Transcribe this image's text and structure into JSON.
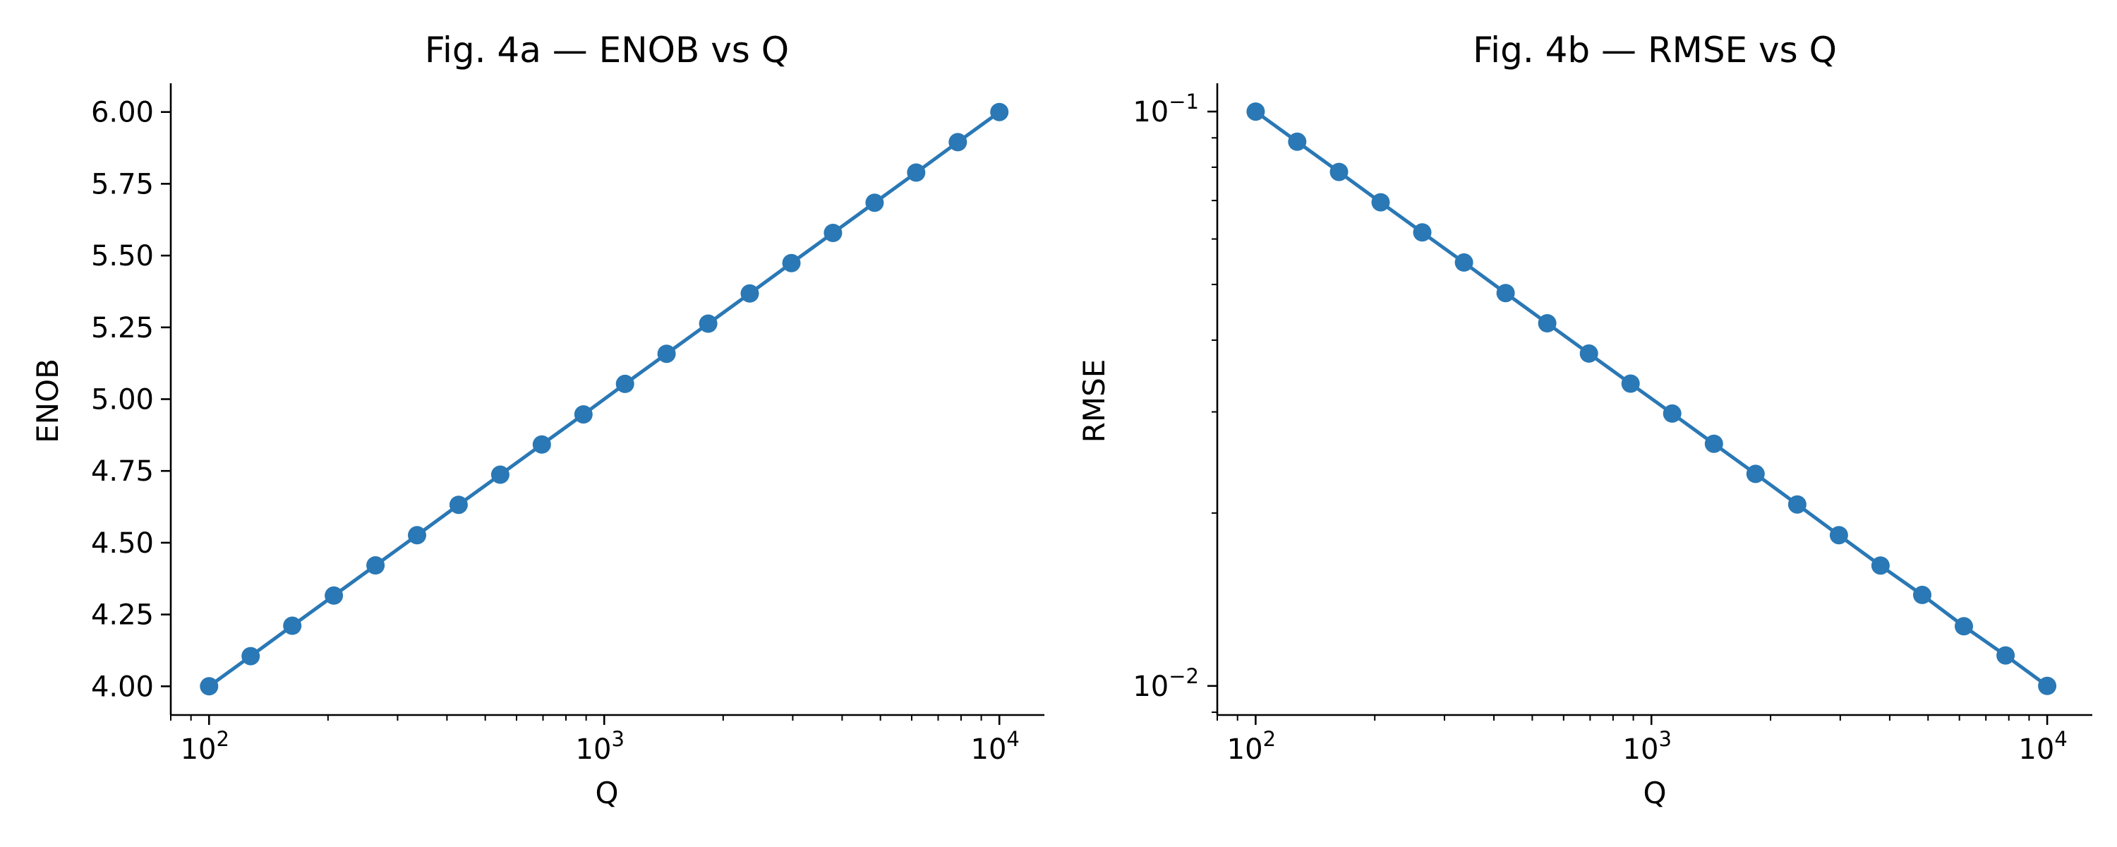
{
  "chart_data": [
    {
      "type": "line",
      "title": "Fig. 4a — ENOB vs Q",
      "xlabel": "Q",
      "ylabel": "ENOB",
      "x_scale": "log",
      "y_scale": "linear",
      "xlim": [
        80,
        13000
      ],
      "ylim": [
        3.9,
        6.1
      ],
      "x_ticks": [
        {
          "value": 100,
          "base": "10",
          "exp": "2"
        },
        {
          "value": 1000,
          "base": "10",
          "exp": "3"
        },
        {
          "value": 10000,
          "base": "10",
          "exp": "4"
        }
      ],
      "y_ticks": [
        "4.00",
        "4.25",
        "4.50",
        "4.75",
        "5.00",
        "5.25",
        "5.50",
        "5.75",
        "6.00"
      ],
      "grid": false,
      "color": "#2a78b5",
      "x": [
        100,
        127.4,
        162.4,
        206.9,
        263.7,
        336.0,
        428.1,
        545.6,
        695.2,
        885.9,
        1128.8,
        1438.4,
        1832.9,
        2335.7,
        2976.4,
        3792.7,
        4832.9,
        6158.5,
        7847.6,
        10000
      ],
      "y": [
        4.0,
        4.105,
        4.211,
        4.316,
        4.421,
        4.526,
        4.632,
        4.737,
        4.842,
        4.947,
        5.053,
        5.158,
        5.263,
        5.368,
        5.474,
        5.579,
        5.684,
        5.789,
        5.895,
        6.0
      ]
    },
    {
      "type": "line",
      "title": "Fig. 4b — RMSE vs Q",
      "xlabel": "Q",
      "ylabel": "RMSE",
      "x_scale": "log",
      "y_scale": "log",
      "xlim": [
        80,
        13000
      ],
      "ylim": [
        0.0089,
        0.112
      ],
      "x_ticks": [
        {
          "value": 100,
          "base": "10",
          "exp": "2"
        },
        {
          "value": 1000,
          "base": "10",
          "exp": "3"
        },
        {
          "value": 10000,
          "base": "10",
          "exp": "4"
        }
      ],
      "y_ticks": [
        {
          "value": 0.1,
          "base": "10",
          "exp": "−1"
        },
        {
          "value": 0.01,
          "base": "10",
          "exp": "−2"
        }
      ],
      "grid": false,
      "color": "#2a78b5",
      "x": [
        100,
        127.4,
        162.4,
        206.9,
        263.7,
        336.0,
        428.1,
        545.6,
        695.2,
        885.9,
        1128.8,
        1438.4,
        1832.9,
        2335.7,
        2976.4,
        3792.7,
        4832.9,
        6158.5,
        7847.6,
        10000
      ],
      "y": [
        0.1,
        0.0886,
        0.0785,
        0.0695,
        0.0616,
        0.0546,
        0.0483,
        0.0428,
        0.0379,
        0.0336,
        0.0298,
        0.0264,
        0.0234,
        0.0207,
        0.0183,
        0.0162,
        0.0144,
        0.0127,
        0.0113,
        0.01
      ]
    }
  ]
}
